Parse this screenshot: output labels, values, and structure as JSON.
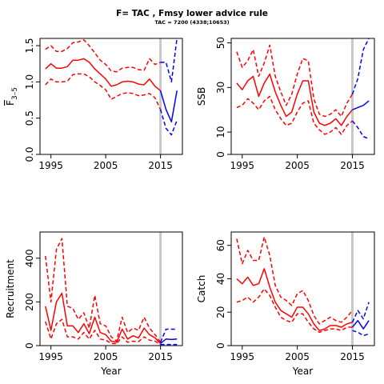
{
  "title": "F= TAC , Fmsy lower advice rule",
  "subtitle": "TAC = 7200 (4338;10653)",
  "colors": {
    "history": "#ff0000",
    "forecast": "#0000ff",
    "current_year_line": "#c8c8c8"
  },
  "chart_data": [
    {
      "id": "fbar",
      "type": "line",
      "ylabel_parts": [
        "F",
        "3–5"
      ],
      "xlabel": "",
      "xlim": [
        1993,
        2019
      ],
      "ylim": [
        0,
        1.6
      ],
      "xticks": [
        1995,
        2005,
        2015
      ],
      "yticks": [
        0.0,
        0.5,
        1.0,
        1.5
      ],
      "ytick_labels": [
        "0.0",
        "0.5",
        "1.0",
        "1.5"
      ],
      "vline": 2015,
      "history": {
        "x": [
          1994,
          1995,
          1996,
          1997,
          1998,
          1999,
          2000,
          2001,
          2002,
          2003,
          2004,
          2005,
          2006,
          2007,
          2008,
          2009,
          2010,
          2011,
          2012,
          2013,
          2014,
          2015
        ],
        "median": [
          1.18,
          1.25,
          1.19,
          1.19,
          1.21,
          1.3,
          1.3,
          1.32,
          1.27,
          1.18,
          1.11,
          1.04,
          0.94,
          0.96,
          1.0,
          1.01,
          1.0,
          0.97,
          0.96,
          1.04,
          0.94,
          0.88
        ],
        "upper": [
          1.45,
          1.5,
          1.42,
          1.42,
          1.46,
          1.54,
          1.55,
          1.58,
          1.5,
          1.4,
          1.3,
          1.24,
          1.15,
          1.14,
          1.19,
          1.2,
          1.2,
          1.17,
          1.16,
          1.32,
          1.24,
          1.27
        ],
        "lower": [
          0.96,
          1.04,
          1.0,
          1.0,
          1.01,
          1.1,
          1.11,
          1.11,
          1.07,
          1.0,
          0.95,
          0.89,
          0.76,
          0.8,
          0.84,
          0.85,
          0.84,
          0.81,
          0.82,
          0.84,
          0.78,
          0.62
        ]
      },
      "forecast": {
        "x": [
          2015,
          2016,
          2017,
          2018
        ],
        "median": [
          0.88,
          0.62,
          0.45,
          0.88
        ],
        "upper": [
          1.27,
          1.27,
          1.0,
          1.6
        ],
        "lower": [
          0.62,
          0.36,
          0.27,
          0.47
        ]
      }
    },
    {
      "id": "ssb",
      "type": "line",
      "ylabel": "SSB",
      "xlabel": "",
      "xlim": [
        1993,
        2019
      ],
      "ylim": [
        0,
        52
      ],
      "xticks": [
        1995,
        2005,
        2015
      ],
      "yticks": [
        0,
        10,
        30,
        50
      ],
      "ytick_labels": [
        "0",
        "10",
        "30",
        "50"
      ],
      "vline": 2015,
      "history": {
        "x": [
          1994,
          1995,
          1996,
          1997,
          1998,
          1999,
          2000,
          2001,
          2002,
          2003,
          2004,
          2005,
          2006,
          2007,
          2008,
          2009,
          2010,
          2011,
          2012,
          2013,
          2014,
          2015
        ],
        "median": [
          32,
          29,
          33,
          35,
          26,
          32,
          36,
          28,
          22,
          17,
          19,
          27,
          33,
          33,
          19,
          14,
          13,
          14,
          16,
          13,
          17,
          20
        ],
        "upper": [
          46,
          39,
          42,
          47,
          35,
          41,
          49,
          35,
          28,
          22,
          27,
          36,
          43,
          42,
          25,
          18,
          17,
          18,
          20,
          17,
          23,
          27
        ],
        "lower": [
          21,
          22,
          25,
          23,
          20,
          24,
          26,
          20,
          16,
          13,
          14,
          19,
          23,
          24,
          14,
          11,
          9,
          10,
          12,
          9,
          13,
          15
        ]
      },
      "forecast": {
        "x": [
          2015,
          2016,
          2017,
          2018
        ],
        "median": [
          20,
          21,
          22,
          24
        ],
        "upper": [
          27,
          34,
          47,
          52
        ],
        "lower": [
          15,
          12,
          8,
          7
        ]
      }
    },
    {
      "id": "recruitment",
      "type": "line",
      "ylabel": "Recruitment",
      "xlabel": "Year",
      "xlim": [
        1993,
        2019
      ],
      "ylim": [
        0,
        520
      ],
      "xticks": [
        1995,
        2005,
        2015
      ],
      "yticks": [
        0,
        200,
        400
      ],
      "ytick_labels": [
        "0",
        "200",
        "400"
      ],
      "vline": 2015,
      "history": {
        "x": [
          1994,
          1995,
          1996,
          1997,
          1998,
          1999,
          2000,
          2001,
          2002,
          2003,
          2004,
          2005,
          2006,
          2007,
          2008,
          2009,
          2010,
          2011,
          2012,
          2013,
          2014,
          2015
        ],
        "median": [
          180,
          70,
          200,
          240,
          90,
          90,
          60,
          100,
          55,
          130,
          60,
          50,
          20,
          15,
          75,
          30,
          45,
          35,
          80,
          50,
          35,
          10
        ],
        "upper": [
          410,
          200,
          440,
          490,
          180,
          170,
          120,
          150,
          80,
          230,
          100,
          90,
          40,
          20,
          130,
          60,
          80,
          70,
          130,
          80,
          50,
          15
        ],
        "lower": [
          110,
          30,
          100,
          120,
          40,
          40,
          30,
          60,
          30,
          70,
          30,
          25,
          10,
          8,
          40,
          15,
          20,
          18,
          40,
          25,
          20,
          5
        ]
      },
      "forecast": {
        "x": [
          2015,
          2016,
          2017,
          2018
        ],
        "median": [
          10,
          30,
          28,
          30
        ],
        "upper": [
          15,
          75,
          75,
          75
        ],
        "lower": [
          5,
          5,
          5,
          5
        ]
      }
    },
    {
      "id": "catch",
      "type": "line",
      "ylabel": "Catch",
      "xlabel": "Year",
      "xlim": [
        1993,
        2019
      ],
      "ylim": [
        0,
        68
      ],
      "xticks": [
        1995,
        2005,
        2015
      ],
      "yticks": [
        0,
        20,
        40,
        60
      ],
      "ytick_labels": [
        "0",
        "20",
        "40",
        "60"
      ],
      "vline": 2015,
      "history": {
        "x": [
          1994,
          1995,
          1996,
          1997,
          1998,
          1999,
          2000,
          2001,
          2002,
          2003,
          2004,
          2005,
          2006,
          2007,
          2008,
          2009,
          2010,
          2011,
          2012,
          2013,
          2014,
          2015
        ],
        "median": [
          40,
          37,
          41,
          36,
          37,
          46,
          35,
          26,
          21,
          19,
          17,
          23,
          23,
          19,
          13,
          9,
          10,
          12,
          12,
          11,
          13,
          14
        ],
        "upper": [
          64,
          49,
          57,
          51,
          51,
          65,
          54,
          36,
          29,
          27,
          24,
          31,
          33,
          27,
          18,
          13,
          15,
          17,
          15,
          14,
          17,
          21
        ],
        "lower": [
          26,
          27,
          29,
          26,
          29,
          34,
          30,
          23,
          17,
          15,
          14,
          19,
          19,
          14,
          10,
          8,
          9,
          10,
          10,
          9,
          11,
          11
        ]
      },
      "forecast": {
        "x": [
          2015,
          2016,
          2017,
          2018
        ],
        "median": [
          11,
          15,
          10,
          15
        ],
        "upper": [
          14,
          21,
          16,
          26
        ],
        "lower": [
          9,
          8,
          6,
          7
        ]
      }
    }
  ]
}
